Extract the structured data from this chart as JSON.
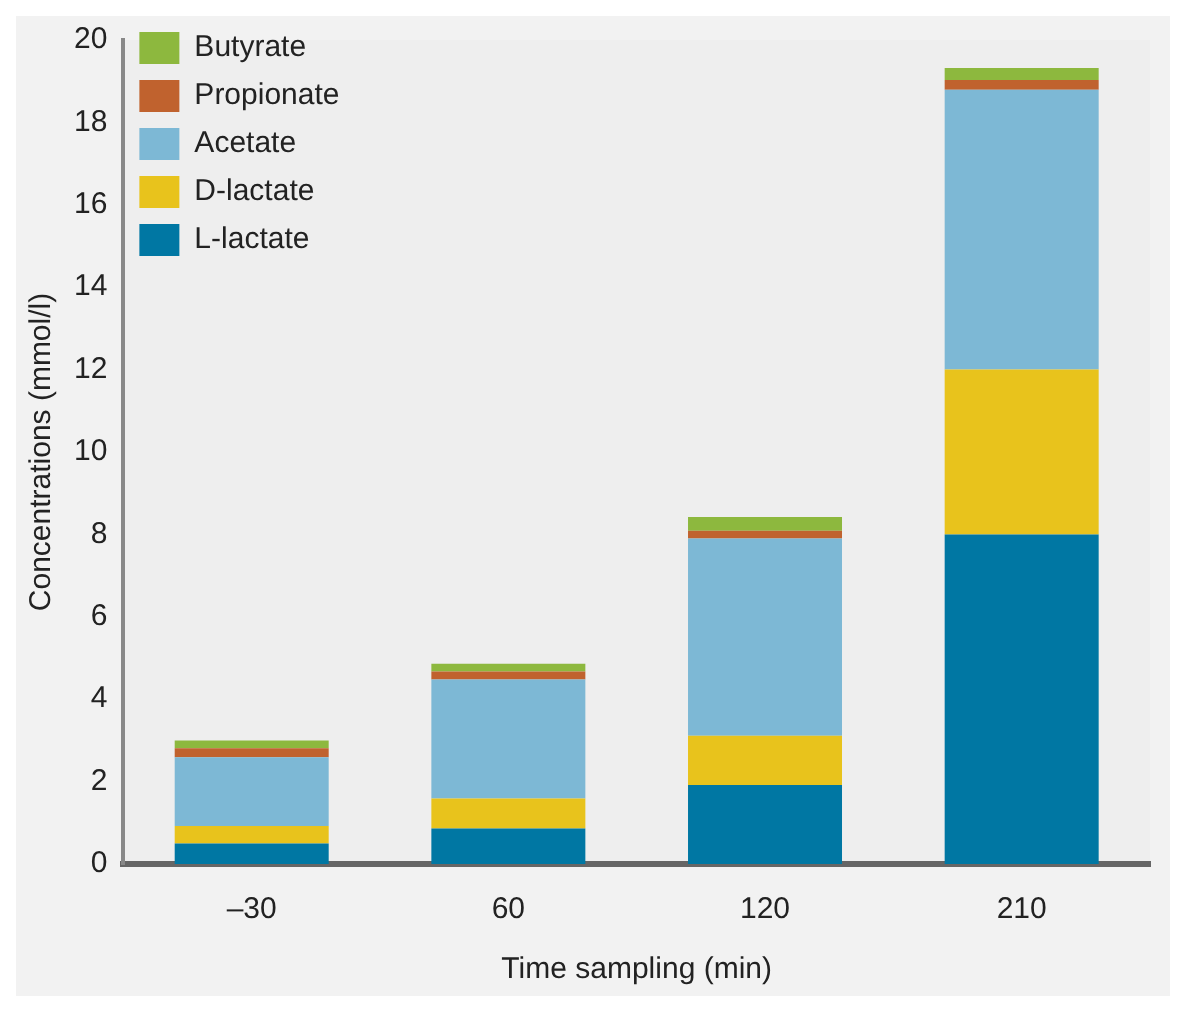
{
  "chart_data": {
    "type": "bar",
    "stacked": true,
    "xlabel": "Time sampling (min)",
    "ylabel": "Concentrations (mmol/l)",
    "categories": [
      "–30",
      "60",
      "120",
      "210"
    ],
    "ylim": [
      0,
      20
    ],
    "yticks": [
      0,
      2,
      4,
      6,
      8,
      10,
      12,
      14,
      16,
      18,
      20
    ],
    "grid": false,
    "legend": "top left",
    "series": [
      {
        "name": "L-lactate",
        "color": "#0077a3",
        "values": [
          0.5,
          0.86,
          1.92,
          8
        ]
      },
      {
        "name": "D-lactate",
        "color": "#e8c31c",
        "values": [
          0.42,
          0.73,
          1.19,
          4
        ]
      },
      {
        "name": "Acetate",
        "color": "#7db8d5",
        "values": [
          1.67,
          2.89,
          4.79,
          6.79
        ]
      },
      {
        "name": "Propionate",
        "color": "#c0622e",
        "values": [
          0.22,
          0.19,
          0.19,
          0.24
        ]
      },
      {
        "name": "Butyrate",
        "color": "#8db83e",
        "values": [
          0.19,
          0.19,
          0.33,
          0.29
        ]
      }
    ]
  }
}
